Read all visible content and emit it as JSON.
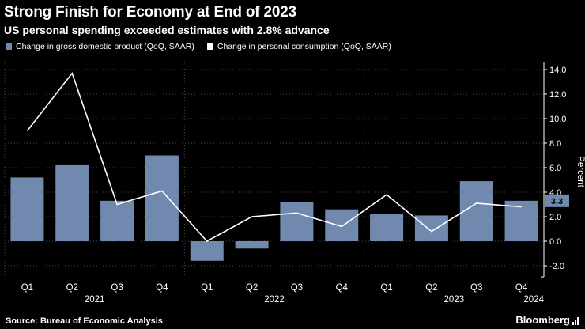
{
  "header": {
    "title": "Strong Finish for Economy at End of 2023",
    "subtitle": "US personal spending exceeded estimates with 2.8% advance"
  },
  "legend": [
    {
      "label": "Change in gross domestic product (QoQ, SAAR)",
      "color": "#7189ae"
    },
    {
      "label": "Change in personal consumption (QoQ, SAAR)",
      "color": "#ffffff"
    }
  ],
  "chart_data": {
    "type": "bar",
    "categories": [
      "Q1",
      "Q2",
      "Q3",
      "Q4",
      "Q1",
      "Q2",
      "Q3",
      "Q4",
      "Q1",
      "Q2",
      "Q3",
      "Q4"
    ],
    "year_groups": [
      {
        "label": "2021",
        "start": 0,
        "end": 3
      },
      {
        "label": "2022",
        "start": 4,
        "end": 7
      },
      {
        "label": "2023",
        "start": 8,
        "end": 11
      }
    ],
    "end_label": "2024",
    "series": [
      {
        "name": "Change in gross domestic product (QoQ, SAAR)",
        "type": "bar",
        "color": "#7189ae",
        "values": [
          5.2,
          6.2,
          3.3,
          7.0,
          -1.6,
          -0.6,
          3.2,
          2.6,
          2.2,
          2.1,
          4.9,
          3.3
        ]
      },
      {
        "name": "Change in personal consumption (QoQ, SAAR)",
        "type": "line",
        "color": "#ffffff",
        "values": [
          9.0,
          13.7,
          3.0,
          4.1,
          0.0,
          2.0,
          2.3,
          1.2,
          3.8,
          0.8,
          3.1,
          2.8
        ]
      }
    ],
    "ylabel": "Percent",
    "ylim": [
      -2.9,
      14.8
    ],
    "yticks": [
      14,
      12,
      10,
      8,
      6,
      4,
      2,
      0,
      -2
    ],
    "ytick_labels": [
      "14.0",
      "12.0",
      "10.0",
      "8.0",
      "6.0",
      "4.0",
      "2.0",
      "0.0",
      "-2.0"
    ],
    "grid": true,
    "legend_position": "top-left",
    "last_value_badge": {
      "text": "3.3",
      "value": 3.3,
      "color": "#7189ae",
      "text_color": "#000000"
    }
  },
  "footer": {
    "source": "Source: Bureau of Economic Analysis",
    "brand": "Bloomberg"
  },
  "colors": {
    "background": "#000000",
    "grid": "#4a4a4a",
    "axis": "#ffffff",
    "text": "#ffffff"
  }
}
